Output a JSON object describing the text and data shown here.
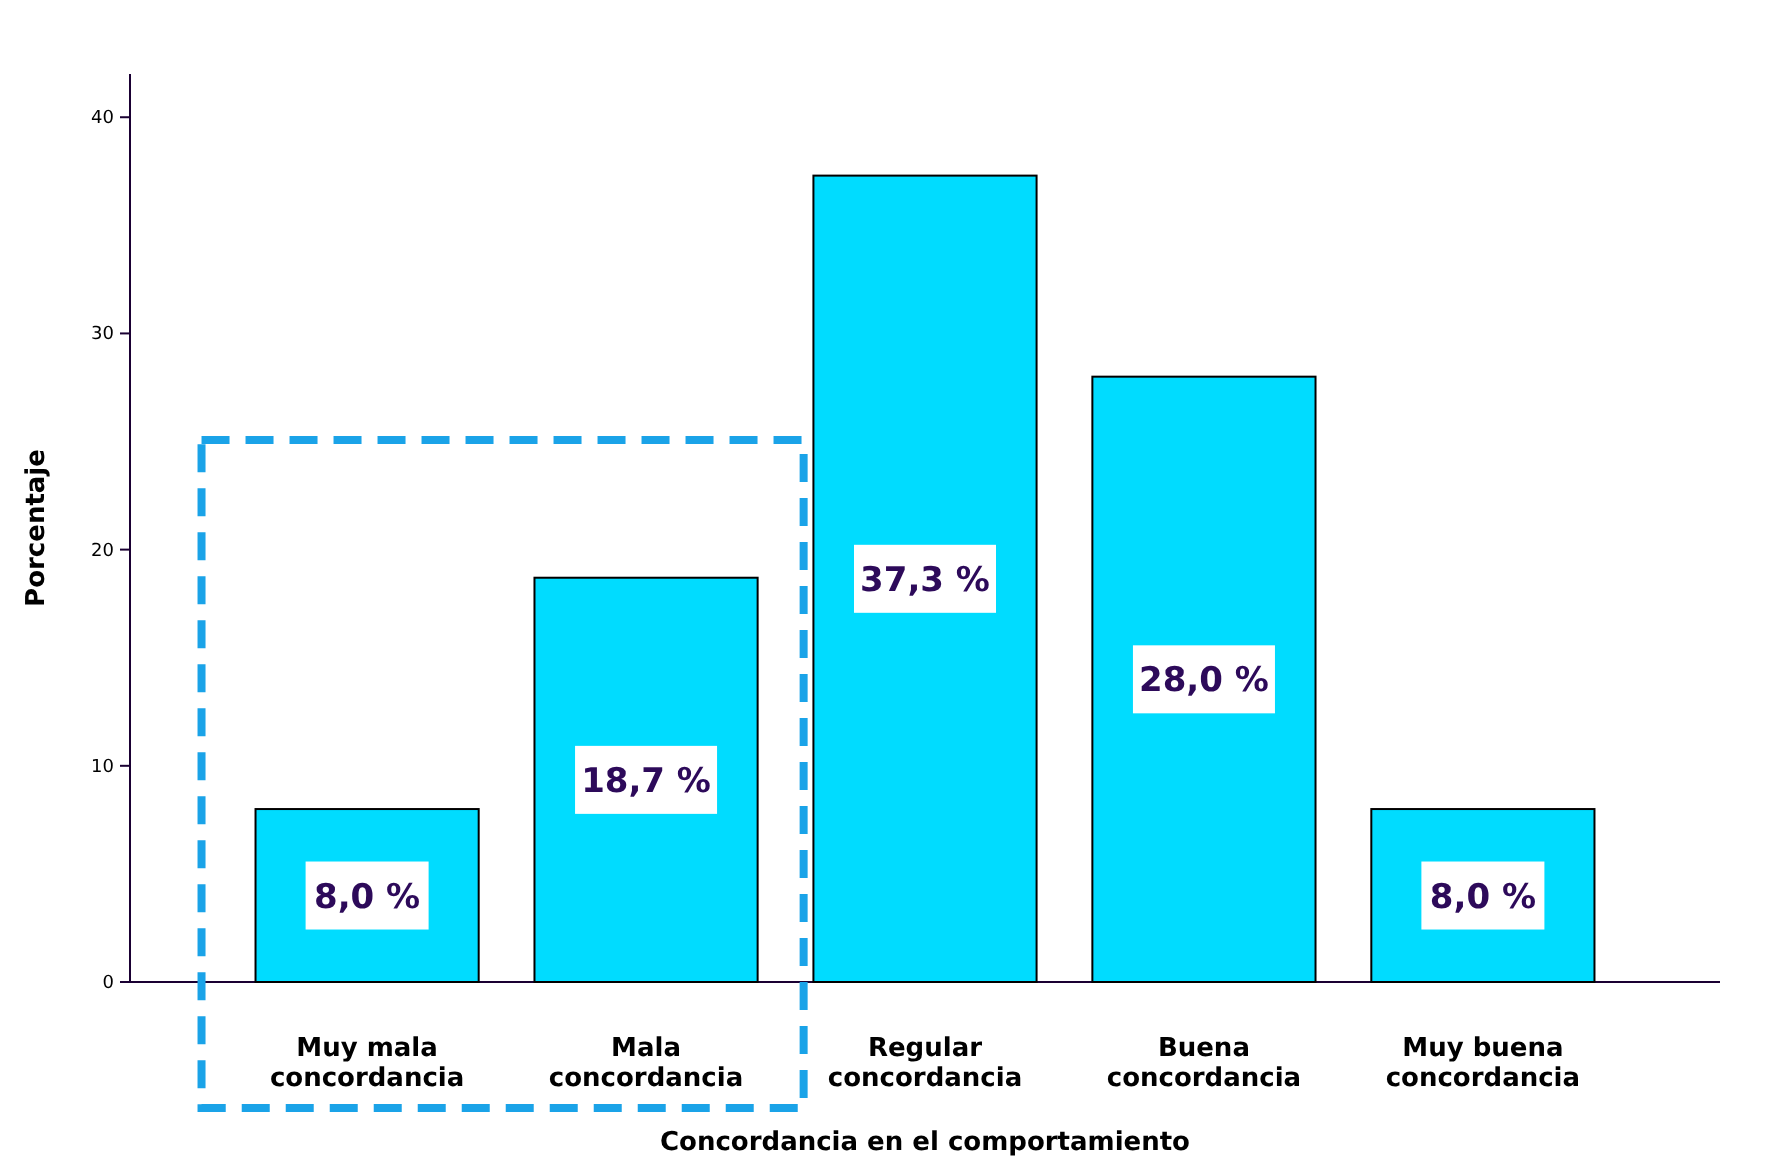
{
  "chart_data": {
    "type": "bar",
    "xlabel": "Concordancia en el comportamiento",
    "ylabel": "Porcentaje",
    "categories": [
      "Muy mala concordancia",
      "Mala concordancia",
      "Regular concordancia",
      "Buena concordancia",
      "Muy buena concordancia"
    ],
    "values": [
      8.0,
      18.7,
      37.3,
      28.0,
      8.0
    ],
    "value_labels": [
      "8,0 %",
      "18,7 %",
      "37,3 %",
      "28,0 %",
      "8,0 %"
    ],
    "color": "#00dcff",
    "ylim": [
      0,
      42
    ],
    "yticks": [
      0,
      10,
      20,
      30,
      40
    ],
    "grid": false
  }
}
